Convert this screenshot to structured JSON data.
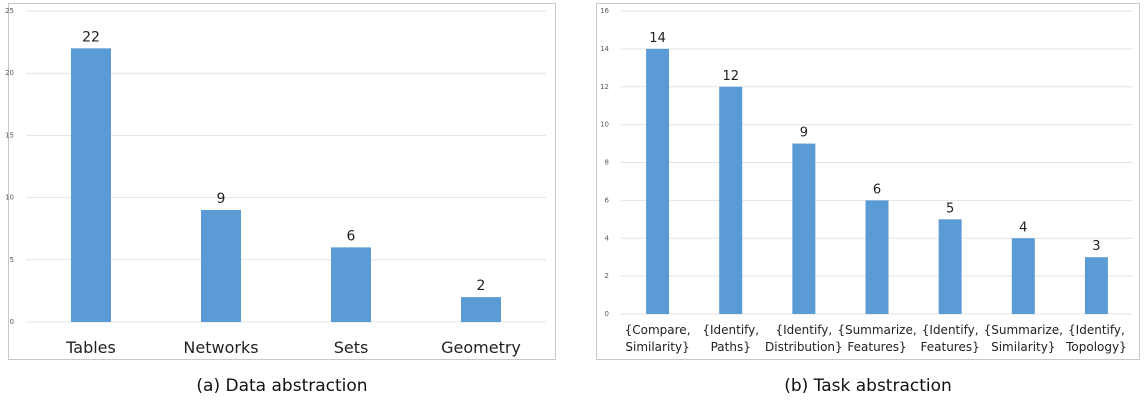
{
  "captions": {
    "a": "(a) Data abstraction",
    "b": "(b) Task abstraction"
  },
  "colors": {
    "bar": "#5b9bd5",
    "grid": "#e3e3e3",
    "axis_text": "#595959",
    "label_text": "#222222"
  },
  "chart_data": [
    {
      "type": "bar",
      "title": "",
      "xlabel": "",
      "ylabel": "",
      "categories": [
        "Tables",
        "Networks",
        "Sets",
        "Geometry"
      ],
      "values": [
        22,
        9,
        6,
        2
      ],
      "data_labels": [
        "22",
        "9",
        "6",
        "2"
      ],
      "ylim": [
        0,
        25
      ],
      "yticks": [
        0,
        5,
        10,
        15,
        20,
        25
      ],
      "grid": true,
      "legend": "none"
    },
    {
      "type": "bar",
      "title": "",
      "xlabel": "",
      "ylabel": "",
      "categories": [
        [
          "{Compare,",
          "Similarity}"
        ],
        [
          "{Identify,",
          "Paths}"
        ],
        [
          "{Identify,",
          "Distribution}"
        ],
        [
          "{Summarize,",
          "Features}"
        ],
        [
          "{Identify,",
          "Features}"
        ],
        [
          "{Summarize,",
          "Similarity}"
        ],
        [
          "{Identify,",
          "Topology}"
        ]
      ],
      "values": [
        14,
        12,
        9,
        6,
        5,
        4,
        3
      ],
      "data_labels": [
        "14",
        "12",
        "9",
        "6",
        "5",
        "4",
        "3"
      ],
      "ylim": [
        0,
        16
      ],
      "yticks": [
        0,
        2,
        4,
        6,
        8,
        10,
        12,
        14,
        16
      ],
      "grid": true,
      "legend": "none"
    }
  ]
}
